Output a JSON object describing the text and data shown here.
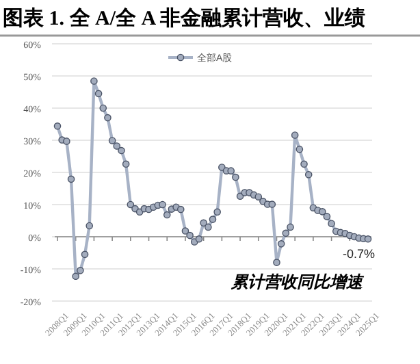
{
  "chart_data": {
    "type": "line",
    "title": "图表 1. 全 A/全 A 非金融累计营收、业绩",
    "categories": [
      "2008Q1",
      null,
      null,
      null,
      "2009Q1",
      null,
      null,
      null,
      "2010Q1",
      null,
      null,
      null,
      "2011Q1",
      null,
      null,
      null,
      "2012Q1",
      null,
      null,
      null,
      "2013Q1",
      null,
      null,
      null,
      "2014Q1",
      null,
      null,
      null,
      "2015Q1",
      null,
      null,
      null,
      "2016Q1",
      null,
      null,
      null,
      "2017Q1",
      null,
      null,
      null,
      "2018Q1",
      null,
      null,
      null,
      "2019Q1",
      null,
      null,
      null,
      "2020Q1",
      null,
      null,
      null,
      "2021Q1",
      null,
      null,
      null,
      "2022Q1",
      null,
      null,
      null,
      "2023Q1",
      null,
      null,
      null,
      "2024Q1",
      null,
      null,
      null,
      "2025Q1"
    ],
    "series": [
      {
        "name": "全部A股",
        "color": "#a7b2c6",
        "values": [
          34.4,
          30.1,
          29.7,
          17.9,
          -12.3,
          -10.5,
          -5.5,
          3.4,
          48.4,
          44.5,
          40.0,
          37.0,
          29.9,
          28.2,
          26.8,
          22.6,
          10.0,
          8.7,
          7.7,
          8.7,
          8.5,
          9.2,
          9.8,
          10.0,
          6.8,
          8.6,
          9.2,
          8.5,
          1.8,
          0.4,
          -1.6,
          -0.7,
          4.3,
          3.0,
          5.4,
          7.7,
          21.6,
          20.5,
          20.5,
          18.5,
          12.6,
          13.7,
          13.7,
          13.0,
          12.4,
          11.0,
          10.1,
          10.1,
          -8.0,
          -2.2,
          1.1,
          3.0,
          31.6,
          27.2,
          22.6,
          19.3,
          9.0,
          8.2,
          7.8,
          6.3,
          4.1,
          1.7,
          1.3,
          1.0,
          0.4,
          0.0,
          -0.4,
          -0.6,
          -0.7
        ]
      }
    ],
    "ylim": [
      -20,
      60
    ],
    "yticks": [
      {
        "value": -20,
        "label": "-20%"
      },
      {
        "value": -10,
        "label": "-10%"
      },
      {
        "value": 0,
        "label": "0%"
      },
      {
        "value": 10,
        "label": "10%"
      },
      {
        "value": 20,
        "label": "20%"
      },
      {
        "value": 30,
        "label": "30%"
      },
      {
        "value": 40,
        "label": "40%"
      },
      {
        "value": 50,
        "label": "50%"
      },
      {
        "value": 60,
        "label": "60%"
      }
    ],
    "grid": "y",
    "legend": "top",
    "marker": "circle",
    "line_style": "solid",
    "annotations": [
      {
        "text": "-0.7%",
        "x": "2025Q1",
        "y": -0.7
      },
      "累计营收同比增速"
    ]
  }
}
